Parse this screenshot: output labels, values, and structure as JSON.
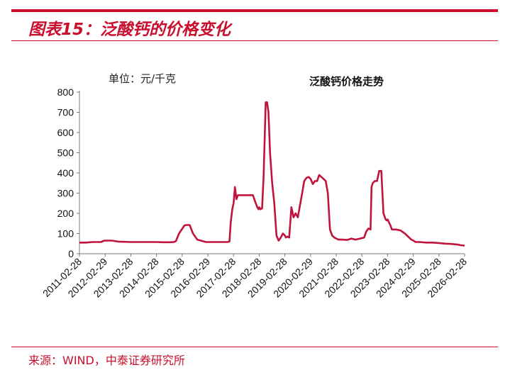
{
  "figure": {
    "title": "图表15：泛酸钙的价格变化",
    "source": "来源：WIND，中泰证券研究所"
  },
  "chart_data": {
    "type": "line",
    "title": "泛酸钙价格走势",
    "unit_label": "单位：元/千克",
    "ylim": [
      0,
      800
    ],
    "y_ticks": [
      0,
      100,
      200,
      300,
      400,
      500,
      600,
      700,
      800
    ],
    "x_tick_labels": [
      "2011-02-28",
      "2012-02-29",
      "2013-02-28",
      "2014-02-28",
      "2015-02-28",
      "2016-02-29",
      "2017-02-28",
      "2018-02-28",
      "2019-02-28",
      "2020-02-29",
      "2021-02-28",
      "2022-02-28",
      "2023-02-28",
      "2024-02-29",
      "2025-02-28",
      "2026-02-28"
    ],
    "grid": false,
    "legend": "none",
    "series_color": "#c0143c",
    "x": [
      "2011-02-28",
      "2011-06-01",
      "2011-09-01",
      "2012-01-01",
      "2012-02-15",
      "2012-06-01",
      "2012-09-01",
      "2013-03-01",
      "2013-09-01",
      "2014-03-01",
      "2014-06-01",
      "2014-09-01",
      "2014-11-01",
      "2014-12-01",
      "2015-01-15",
      "2015-04-01",
      "2015-05-01",
      "2015-06-15",
      "2015-08-01",
      "2015-10-01",
      "2016-02-01",
      "2016-06-01",
      "2016-12-01",
      "2017-01-01",
      "2017-01-20",
      "2017-02-10",
      "2017-03-01",
      "2017-03-20",
      "2017-04-10",
      "2017-05-01",
      "2017-06-01",
      "2017-09-01",
      "2017-11-01",
      "2017-12-01",
      "2017-12-20",
      "2018-01-10",
      "2018-02-01",
      "2018-02-20",
      "2018-03-01",
      "2018-03-20",
      "2018-04-10",
      "2018-05-01",
      "2018-06-01",
      "2018-06-20",
      "2018-07-10",
      "2018-08-01",
      "2018-09-01",
      "2018-10-01",
      "2018-11-01",
      "2018-12-01",
      "2019-01-01",
      "2019-02-01",
      "2019-02-15",
      "2019-03-01",
      "2019-03-15",
      "2019-04-01",
      "2019-05-01",
      "2019-06-01",
      "2019-07-01",
      "2019-08-01",
      "2019-09-01",
      "2019-10-01",
      "2019-11-01",
      "2019-12-01",
      "2020-01-01",
      "2020-02-01",
      "2020-03-01",
      "2020-04-01",
      "2020-05-01",
      "2020-06-01",
      "2020-07-01",
      "2020-08-01",
      "2020-09-01",
      "2020-10-01",
      "2020-11-01",
      "2020-12-01",
      "2021-01-01",
      "2021-02-01",
      "2021-03-01",
      "2021-04-01",
      "2021-06-01",
      "2021-08-01",
      "2021-10-01",
      "2021-12-01",
      "2022-02-01",
      "2022-04-01",
      "2022-05-01",
      "2022-06-01",
      "2022-07-01",
      "2022-07-15",
      "2022-08-01",
      "2022-09-01",
      "2022-10-01",
      "2022-11-01",
      "2022-12-01",
      "2023-01-01",
      "2023-02-01",
      "2023-02-15",
      "2023-03-01",
      "2023-03-20",
      "2023-04-10",
      "2023-05-01",
      "2023-06-01",
      "2023-07-01",
      "2023-09-01",
      "2023-11-01",
      "2024-01-01",
      "2024-02-01",
      "2024-03-01",
      "2024-04-01",
      "2024-06-01",
      "2024-09-01",
      "2024-12-01",
      "2025-03-01",
      "2025-06-01",
      "2025-09-01",
      "2025-12-01",
      "2026-01-01",
      "2026-02-28"
    ],
    "values": [
      55,
      55,
      58,
      58,
      65,
      65,
      60,
      58,
      58,
      58,
      57,
      57,
      58,
      62,
      100,
      140,
      142,
      142,
      100,
      70,
      58,
      58,
      58,
      60,
      160,
      220,
      250,
      330,
      270,
      290,
      290,
      290,
      290,
      290,
      270,
      250,
      230,
      220,
      230,
      220,
      225,
      380,
      750,
      750,
      700,
      500,
      350,
      250,
      90,
      65,
      80,
      100,
      95,
      90,
      80,
      85,
      80,
      230,
      180,
      200,
      180,
      240,
      300,
      360,
      375,
      380,
      370,
      345,
      360,
      360,
      390,
      380,
      370,
      360,
      300,
      120,
      90,
      80,
      75,
      70,
      70,
      68,
      75,
      70,
      75,
      80,
      110,
      125,
      120,
      330,
      350,
      360,
      360,
      410,
      410,
      200,
      170,
      165,
      170,
      155,
      140,
      120,
      120,
      120,
      115,
      100,
      80,
      70,
      65,
      58,
      58,
      55,
      55,
      53,
      50,
      48,
      45,
      42,
      40
    ]
  }
}
